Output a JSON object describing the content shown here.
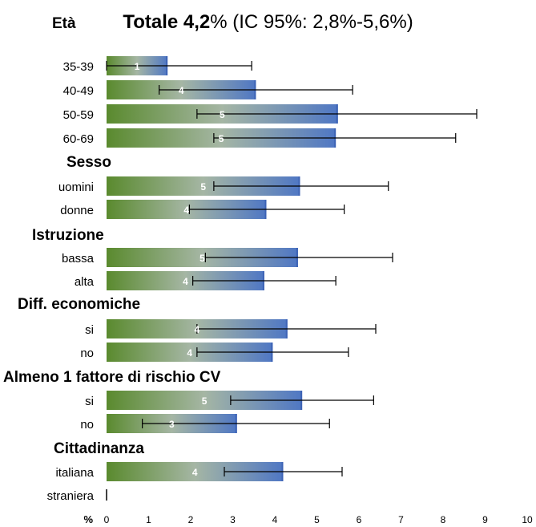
{
  "chart_data": {
    "type": "bar",
    "orientation": "horizontal",
    "title": {
      "bold": "Totale 4,2",
      "suffix": "% (IC 95%: 2,8%-5,6%)"
    },
    "xlim": [
      0,
      10
    ],
    "xticks": [
      "0",
      "1",
      "2",
      "3",
      "4",
      "5",
      "6",
      "7",
      "8",
      "9",
      "10"
    ],
    "x_unit_label": "%",
    "grid": false,
    "legend": "none",
    "colors": {
      "bar_start": "#5a8a2e",
      "bar_mid": "#a5b6a4",
      "bar_end": "#4f77c4",
      "bar_edge": "#3d63b5",
      "error_bar": "#000000",
      "data_label": "#ffffff"
    },
    "groups": [
      {
        "name": "Età",
        "bars": [
          {
            "label": "35-39",
            "value": 1.45,
            "ci_low": 0.0,
            "ci_high": 3.45,
            "data_label": "1"
          },
          {
            "label": "40-49",
            "value": 3.55,
            "ci_low": 1.25,
            "ci_high": 5.85,
            "data_label": "4"
          },
          {
            "label": "50-59",
            "value": 5.5,
            "ci_low": 2.15,
            "ci_high": 8.8,
            "data_label": "5"
          },
          {
            "label": "60-69",
            "value": 5.45,
            "ci_low": 2.55,
            "ci_high": 8.3,
            "data_label": "5"
          }
        ]
      },
      {
        "name": "Sesso",
        "bars": [
          {
            "label": "uomini",
            "value": 4.6,
            "ci_low": 2.55,
            "ci_high": 6.7,
            "data_label": "5"
          },
          {
            "label": "donne",
            "value": 3.8,
            "ci_low": 1.97,
            "ci_high": 5.65,
            "data_label": "4"
          }
        ]
      },
      {
        "name": "Istruzione",
        "bars": [
          {
            "label": "bassa",
            "value": 4.55,
            "ci_low": 2.35,
            "ci_high": 6.8,
            "data_label": "5"
          },
          {
            "label": "alta",
            "value": 3.75,
            "ci_low": 2.05,
            "ci_high": 5.45,
            "data_label": "4"
          }
        ]
      },
      {
        "name": "Diff. economiche",
        "bars": [
          {
            "label": "si",
            "value": 4.3,
            "ci_low": 2.15,
            "ci_high": 6.4,
            "data_label": "4"
          },
          {
            "label": "no",
            "value": 3.95,
            "ci_low": 2.15,
            "ci_high": 5.75,
            "data_label": "4"
          }
        ]
      },
      {
        "name": "Almeno 1 fattore  di rischio CV",
        "bars": [
          {
            "label": "si",
            "value": 4.65,
            "ci_low": 2.95,
            "ci_high": 6.35,
            "data_label": "5"
          },
          {
            "label": "no",
            "value": 3.1,
            "ci_low": 0.85,
            "ci_high": 5.3,
            "data_label": "3"
          }
        ]
      },
      {
        "name": "Cittadinanza",
        "bars": [
          {
            "label": "italiana",
            "value": 4.2,
            "ci_low": 2.8,
            "ci_high": 5.6,
            "data_label": "4"
          },
          {
            "label": "straniera",
            "value": 0,
            "ci_low": 0,
            "ci_high": 0,
            "data_label": ""
          }
        ]
      }
    ]
  }
}
